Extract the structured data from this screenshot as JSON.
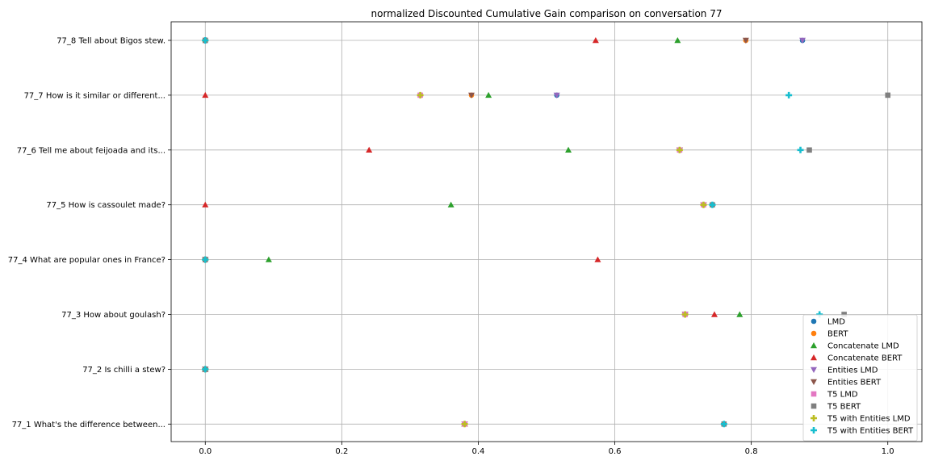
{
  "chart_data": {
    "type": "scatter",
    "title": "normalized Discounted Cumulative Gain comparison on conversation 77",
    "xlabel": "",
    "ylabel": "",
    "xlim": [
      -0.05,
      1.05
    ],
    "xticks": [
      0.0,
      0.2,
      0.4,
      0.6,
      0.8,
      1.0
    ],
    "xtick_labels": [
      "0.0",
      "0.2",
      "0.4",
      "0.6",
      "0.8",
      "1.0"
    ],
    "grid": true,
    "legend_position": "lower-right",
    "categories": [
      "77_1 What's the difference between...",
      "77_2 Is chilli a stew?",
      "77_3 How about goulash?",
      "77_4 What are popular ones in France?",
      "77_5 How is cassoulet made?",
      "77_6 Tell me about feijoada and its...",
      "77_7 How is it similar or different...",
      "77_8 Tell about Bigos stew."
    ],
    "series": [
      {
        "name": "LMD",
        "marker": "circle",
        "color": "#1f77b4",
        "values": [
          0.38,
          0.0,
          0.703,
          0.0,
          0.73,
          0.695,
          0.515,
          0.875
        ]
      },
      {
        "name": "BERT",
        "marker": "circle",
        "color": "#ff7f0e",
        "values": [
          0.38,
          0.0,
          0.703,
          0.0,
          0.73,
          0.695,
          0.39,
          0.792
        ]
      },
      {
        "name": "Concatenate LMD",
        "marker": "triangle-up",
        "color": "#2ca02c",
        "values": [
          0.38,
          0.0,
          0.783,
          0.093,
          0.36,
          0.532,
          0.415,
          0.692
        ]
      },
      {
        "name": "Concatenate BERT",
        "marker": "triangle-up",
        "color": "#d62728",
        "values": [
          0.38,
          0.0,
          0.746,
          0.575,
          0.0,
          0.24,
          0.0,
          0.572
        ]
      },
      {
        "name": "Entities LMD",
        "marker": "triangle-down",
        "color": "#9467bd",
        "values": [
          0.38,
          0.0,
          0.703,
          0.0,
          0.73,
          0.695,
          0.515,
          0.875
        ]
      },
      {
        "name": "Entities BERT",
        "marker": "triangle-down",
        "color": "#8c564b",
        "values": [
          0.38,
          0.0,
          0.703,
          0.0,
          0.73,
          0.695,
          0.39,
          0.792
        ]
      },
      {
        "name": "T5 LMD",
        "marker": "square",
        "color": "#e377c2",
        "values": [
          0.38,
          0.0,
          0.703,
          0.0,
          0.73,
          0.695,
          0.315,
          0.0
        ]
      },
      {
        "name": "T5 BERT",
        "marker": "square",
        "color": "#7f7f7f",
        "values": [
          0.76,
          0.0,
          0.936,
          0.0,
          0.743,
          0.885,
          1.0,
          0.0
        ]
      },
      {
        "name": "T5 with Entities LMD",
        "marker": "plus",
        "color": "#bcbd22",
        "values": [
          0.38,
          0.0,
          0.703,
          0.0,
          0.73,
          0.695,
          0.315,
          0.0
        ]
      },
      {
        "name": "T5 with Entities BERT",
        "marker": "plus",
        "color": "#17becf",
        "values": [
          0.76,
          0.0,
          0.9,
          0.0,
          0.743,
          0.872,
          0.855,
          0.0
        ]
      }
    ]
  }
}
